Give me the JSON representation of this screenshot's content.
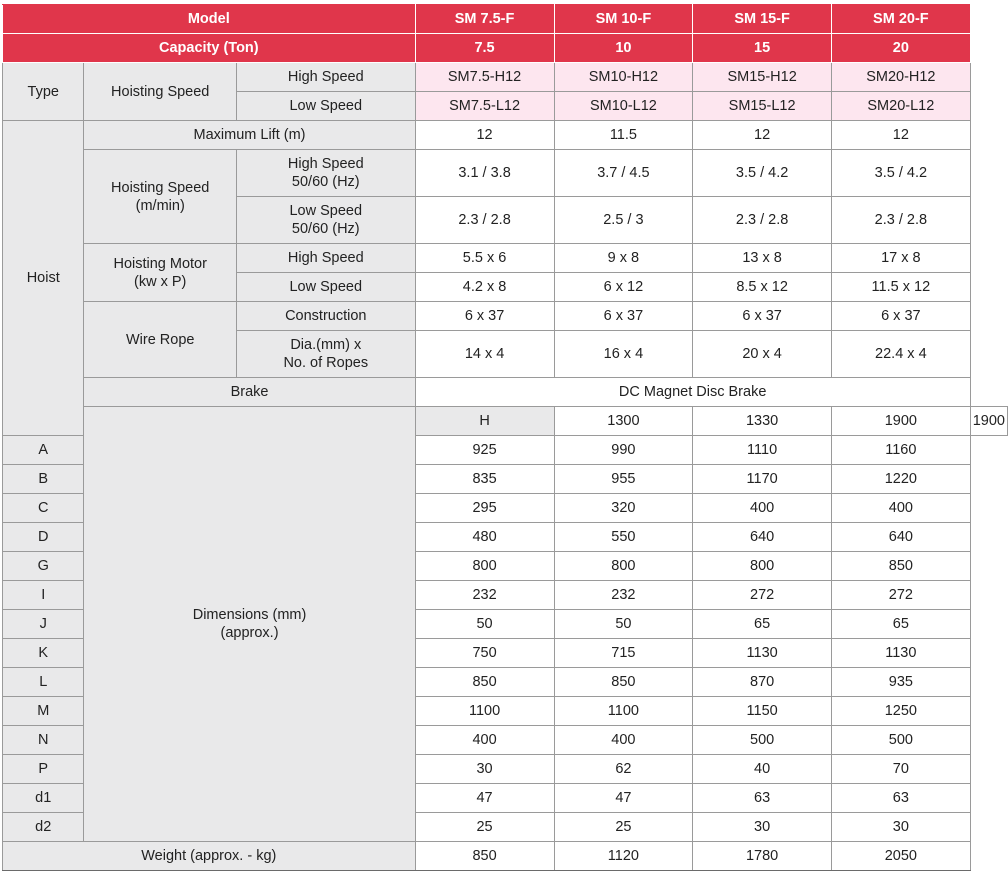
{
  "header": {
    "model_label": "Model",
    "capacity_label": "Capacity (Ton)",
    "models": [
      "SM 7.5-F",
      "SM 10-F",
      "SM 15-F",
      "SM 20-F"
    ],
    "capacities": [
      "7.5",
      "10",
      "15",
      "20"
    ]
  },
  "type": {
    "label": "Type",
    "hoisting_speed_label": "Hoisting Speed",
    "high_label": "High Speed",
    "low_label": "Low Speed",
    "high": [
      "SM7.5-H12",
      "SM10-H12",
      "SM15-H12",
      "SM20-H12"
    ],
    "low": [
      "SM7.5-L12",
      "SM10-L12",
      "SM15-L12",
      "SM20-L12"
    ]
  },
  "hoist": {
    "label": "Hoist",
    "max_lift_label": "Maximum Lift (m)",
    "max_lift": [
      "12",
      "11.5",
      "12",
      "12"
    ],
    "speed_label_1": "Hoisting Speed",
    "speed_label_2": "(m/min)",
    "speed_high_label_1": "High Speed",
    "speed_high_label_2": "50/60 (Hz)",
    "speed_high": [
      "3.1 / 3.8",
      "3.7 / 4.5",
      "3.5 / 4.2",
      "3.5 / 4.2"
    ],
    "speed_low_label_1": "Low Speed",
    "speed_low_label_2": "50/60 (Hz)",
    "speed_low": [
      "2.3 / 2.8",
      "2.5 / 3",
      "2.3 / 2.8",
      "2.3 / 2.8"
    ],
    "motor_label_1": "Hoisting Motor",
    "motor_label_2": "(kw x P)",
    "motor_high_label": "High Speed",
    "motor_high": [
      "5.5 x 6",
      "9 x 8",
      "13 x 8",
      "17 x 8"
    ],
    "motor_low_label": "Low Speed",
    "motor_low": [
      "4.2 x 8",
      "6 x 12",
      "8.5 x 12",
      "11.5 x 12"
    ],
    "rope_label": "Wire Rope",
    "construction_label": "Construction",
    "construction": [
      "6 x 37",
      "6 x 37",
      "6 x 37",
      "6 x 37"
    ],
    "dia_label_1": "Dia.(mm) x",
    "dia_label_2": "No. of Ropes",
    "dia": [
      "14 x 4",
      "16 x 4",
      "20 x 4",
      "22.4 x 4"
    ],
    "brake_label": "Brake",
    "brake_value": "DC Magnet Disc Brake"
  },
  "dimensions": {
    "label_1": "Dimensions (mm)",
    "label_2": "(approx.)",
    "rows": [
      {
        "key": "H",
        "values": [
          "1300",
          "1330",
          "1900",
          "1900"
        ]
      },
      {
        "key": "A",
        "values": [
          "925",
          "990",
          "1110",
          "1160"
        ]
      },
      {
        "key": "B",
        "values": [
          "835",
          "955",
          "1170",
          "1220"
        ]
      },
      {
        "key": "C",
        "values": [
          "295",
          "320",
          "400",
          "400"
        ]
      },
      {
        "key": "D",
        "values": [
          "480",
          "550",
          "640",
          "640"
        ]
      },
      {
        "key": "G",
        "values": [
          "800",
          "800",
          "800",
          "850"
        ]
      },
      {
        "key": "I",
        "values": [
          "232",
          "232",
          "272",
          "272"
        ]
      },
      {
        "key": "J",
        "values": [
          "50",
          "50",
          "65",
          "65"
        ]
      },
      {
        "key": "K",
        "values": [
          "750",
          "715",
          "1130",
          "1130"
        ]
      },
      {
        "key": "L",
        "values": [
          "850",
          "850",
          "870",
          "935"
        ]
      },
      {
        "key": "M",
        "values": [
          "1100",
          "1100",
          "1150",
          "1250"
        ]
      },
      {
        "key": "N",
        "values": [
          "400",
          "400",
          "500",
          "500"
        ]
      },
      {
        "key": "P",
        "values": [
          "30",
          "62",
          "40",
          "70"
        ]
      },
      {
        "key": "d1",
        "values": [
          "47",
          "47",
          "63",
          "63"
        ]
      },
      {
        "key": "d2",
        "values": [
          "25",
          "25",
          "30",
          "30"
        ]
      }
    ]
  },
  "weight": {
    "label": "Weight (approx. - kg)",
    "values": [
      "850",
      "1120",
      "1780",
      "2050"
    ]
  },
  "colors": {
    "header_red": "#e0364b",
    "label_gray": "#e9e9ea",
    "type_pink": "#fde6ef"
  }
}
